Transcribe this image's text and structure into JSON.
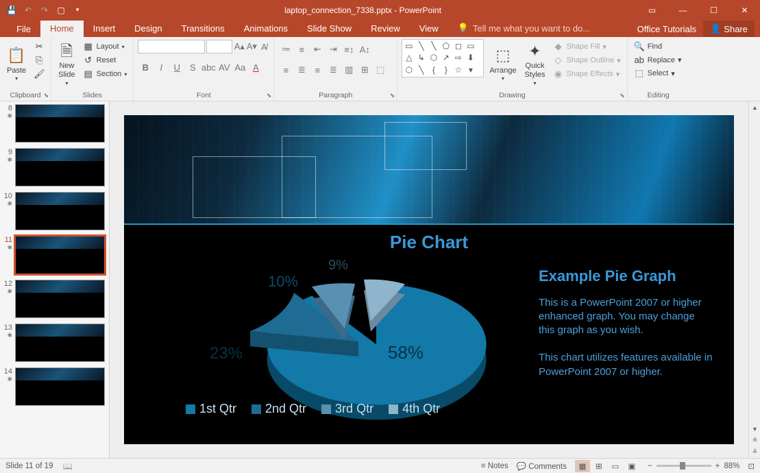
{
  "app": {
    "title": "laptop_connection_7338.pptx - PowerPoint"
  },
  "tabs": {
    "file": "File",
    "items": [
      "Home",
      "Insert",
      "Design",
      "Transitions",
      "Animations",
      "Slide Show",
      "Review",
      "View"
    ],
    "active": "Home",
    "tell_me": "Tell me what you want to do...",
    "tutorials": "Office Tutorials",
    "share": "Share"
  },
  "ribbon": {
    "clipboard": {
      "label": "Clipboard",
      "paste": "Paste"
    },
    "slides": {
      "label": "Slides",
      "new_slide": "New\nSlide",
      "layout": "Layout",
      "reset": "Reset",
      "section": "Section"
    },
    "font": {
      "label": "Font"
    },
    "paragraph": {
      "label": "Paragraph"
    },
    "drawing": {
      "label": "Drawing",
      "arrange": "Arrange",
      "quick_styles": "Quick\nStyles",
      "shape_fill": "Shape Fill",
      "shape_outline": "Shape Outline",
      "shape_effects": "Shape Effects"
    },
    "editing": {
      "label": "Editing",
      "find": "Find",
      "replace": "Replace",
      "select": "Select"
    }
  },
  "thumbnails": {
    "items": [
      {
        "num": "8"
      },
      {
        "num": "9"
      },
      {
        "num": "10"
      },
      {
        "num": "11",
        "selected": true,
        "current": true
      },
      {
        "num": "12"
      },
      {
        "num": "13"
      },
      {
        "num": "14"
      }
    ]
  },
  "slide": {
    "chart_title": "Pie Chart",
    "pie": {
      "type": "pie",
      "slices": [
        {
          "label": "1st Qtr",
          "value": 58,
          "pct": "58%",
          "color": "#1279a8",
          "explode": true
        },
        {
          "label": "2nd Qtr",
          "value": 23,
          "pct": "23%",
          "color": "#1e6b94",
          "explode": false
        },
        {
          "label": "3rd Qtr",
          "value": 10,
          "pct": "10%",
          "color": "#5a90b4",
          "explode": true
        },
        {
          "label": "4th Qtr",
          "value": 9,
          "pct": "9%",
          "color": "#8fb4cc",
          "explode": true
        }
      ],
      "label_color": "#0e4a66",
      "label_fontsize": 22,
      "three_d": true,
      "depth": 28,
      "background": "#000000"
    },
    "side": {
      "title": "Example Pie Graph",
      "p1": "This is a PowerPoint 2007 or higher enhanced graph. You may change this graph as you wish.",
      "p2": "This chart utilizes features available in PowerPoint 2007 or higher.",
      "title_color": "#3b99d8",
      "text_color": "#4da0d8",
      "title_fontsize": 22,
      "text_fontsize": 15
    },
    "legend": {
      "position": "bottom",
      "text_color": "#c8e0f0",
      "fontsize": 18
    }
  },
  "status": {
    "slide_info": "Slide 11 of 19",
    "notes": "Notes",
    "comments": "Comments",
    "zoom": "88%",
    "zoom_value": 88
  }
}
